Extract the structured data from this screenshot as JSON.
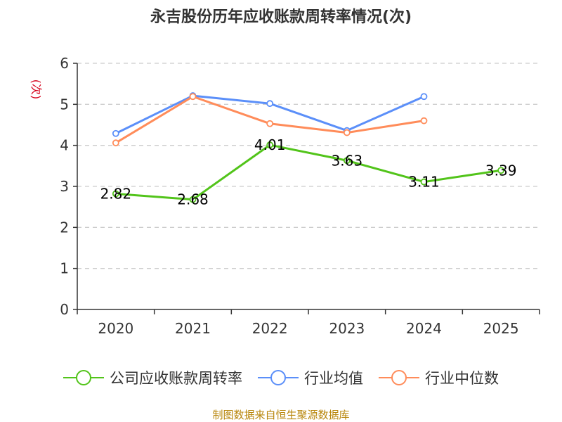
{
  "chart_data": {
    "type": "line",
    "title": "永吉股份历年应收账款周转率情况(次)",
    "ylabel": "(次)",
    "xlabel": "",
    "categories": [
      "2020",
      "2021",
      "2022",
      "2023",
      "2024",
      "2025"
    ],
    "ylim": [
      0,
      6
    ],
    "yticks": [
      0,
      1,
      2,
      3,
      4,
      5,
      6
    ],
    "grid": true,
    "legend_position": "bottom",
    "series": [
      {
        "name": "公司应收账款周转率",
        "color": "#52c41a",
        "values": [
          2.82,
          2.68,
          4.01,
          3.63,
          3.11,
          3.39
        ],
        "labels": [
          "2.82",
          "2.68",
          "4.01",
          "3.63",
          "3.11",
          "3.39"
        ]
      },
      {
        "name": "行业均值",
        "color": "#5b8ff9",
        "values": [
          4.29,
          5.21,
          5.02,
          4.36,
          5.19,
          null
        ]
      },
      {
        "name": "行业中位数",
        "color": "#ff8c5a",
        "values": [
          4.06,
          5.19,
          4.53,
          4.31,
          4.6,
          null
        ]
      }
    ]
  },
  "source_note": "制图数据来自恒生聚源数据库"
}
